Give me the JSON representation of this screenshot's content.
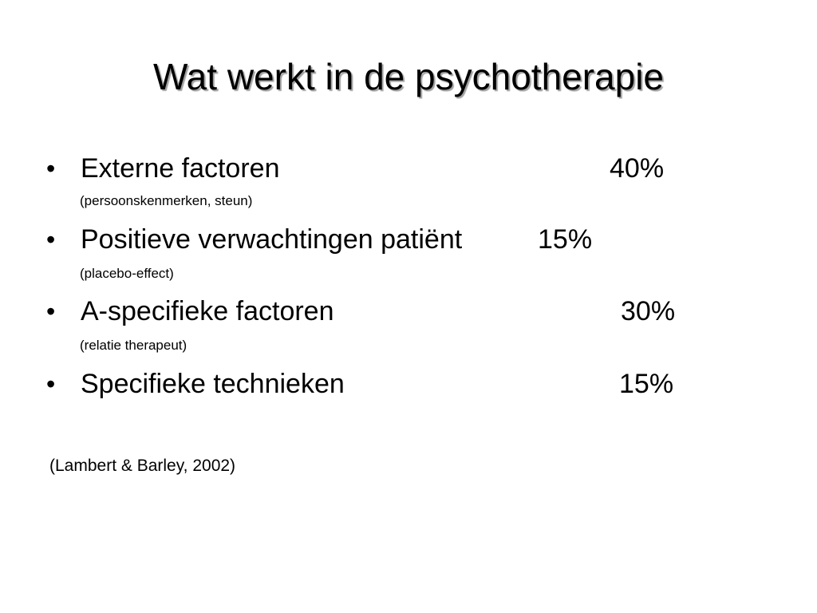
{
  "slide": {
    "title": "Wat werkt in de psychotherapie",
    "bullet_symbol": "•",
    "items": [
      {
        "label": "Externe factoren",
        "value": "40%",
        "note": "(persoonskenmerken, steun)"
      },
      {
        "label": "Positieve verwachtingen patiënt",
        "value": "15%",
        "note": "(placebo-effect)"
      },
      {
        "label": "A-specifieke factoren",
        "value": "30%",
        "note": "(relatie therapeut)"
      },
      {
        "label": "Specifieke technieken",
        "value": "15%",
        "note": ""
      }
    ],
    "source": "(Lambert & Barley, 2002)"
  }
}
